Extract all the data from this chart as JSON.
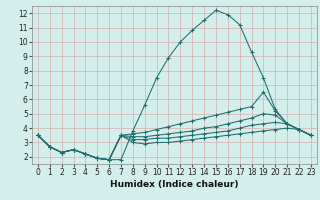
{
  "xlabel": "Humidex (Indice chaleur)",
  "bg_color": "#d4eeeb",
  "grid_color": "#aacfcc",
  "line_color": "#1e6e6e",
  "xlim": [
    -0.5,
    23.5
  ],
  "ylim": [
    1.5,
    12.5
  ],
  "xticks": [
    0,
    1,
    2,
    3,
    4,
    5,
    6,
    7,
    8,
    9,
    10,
    11,
    12,
    13,
    14,
    15,
    16,
    17,
    18,
    19,
    20,
    21,
    22,
    23
  ],
  "yticks": [
    2,
    3,
    4,
    5,
    6,
    7,
    8,
    9,
    10,
    11,
    12
  ],
  "lines": [
    {
      "x": [
        0,
        1,
        2,
        3,
        4,
        5,
        6,
        7,
        8,
        9,
        10,
        11,
        12,
        13,
        14,
        15,
        16,
        17,
        18,
        19,
        20,
        21,
        22,
        23
      ],
      "y": [
        3.5,
        2.7,
        2.3,
        2.5,
        2.2,
        1.9,
        1.8,
        1.8,
        3.8,
        5.6,
        7.5,
        8.9,
        10.0,
        10.8,
        11.5,
        12.2,
        11.9,
        11.2,
        9.3,
        7.5,
        5.3,
        4.3,
        3.9,
        3.5
      ]
    },
    {
      "x": [
        0,
        1,
        2,
        3,
        4,
        5,
        6,
        7,
        8,
        9,
        10,
        11,
        12,
        13,
        14,
        15,
        16,
        17,
        18,
        19,
        20,
        21,
        22,
        23
      ],
      "y": [
        3.5,
        2.7,
        2.3,
        2.5,
        2.2,
        1.9,
        1.8,
        3.5,
        3.6,
        3.7,
        3.9,
        4.1,
        4.3,
        4.5,
        4.7,
        4.9,
        5.1,
        5.3,
        5.5,
        6.5,
        5.2,
        4.3,
        3.9,
        3.5
      ]
    },
    {
      "x": [
        0,
        1,
        2,
        3,
        4,
        5,
        6,
        7,
        8,
        9,
        10,
        11,
        12,
        13,
        14,
        15,
        16,
        17,
        18,
        19,
        20,
        21,
        22,
        23
      ],
      "y": [
        3.5,
        2.7,
        2.3,
        2.5,
        2.2,
        1.9,
        1.8,
        3.5,
        3.4,
        3.4,
        3.5,
        3.6,
        3.7,
        3.8,
        4.0,
        4.1,
        4.3,
        4.5,
        4.7,
        5.0,
        4.9,
        4.3,
        3.9,
        3.5
      ]
    },
    {
      "x": [
        0,
        1,
        2,
        3,
        4,
        5,
        6,
        7,
        8,
        9,
        10,
        11,
        12,
        13,
        14,
        15,
        16,
        17,
        18,
        19,
        20,
        21,
        22,
        23
      ],
      "y": [
        3.5,
        2.7,
        2.3,
        2.5,
        2.2,
        1.9,
        1.8,
        3.5,
        3.2,
        3.2,
        3.3,
        3.3,
        3.4,
        3.5,
        3.6,
        3.7,
        3.8,
        4.0,
        4.2,
        4.3,
        4.4,
        4.3,
        3.9,
        3.5
      ]
    },
    {
      "x": [
        0,
        1,
        2,
        3,
        4,
        5,
        6,
        7,
        8,
        9,
        10,
        11,
        12,
        13,
        14,
        15,
        16,
        17,
        18,
        19,
        20,
        21,
        22,
        23
      ],
      "y": [
        3.5,
        2.7,
        2.3,
        2.5,
        2.2,
        1.9,
        1.8,
        3.5,
        3.0,
        2.9,
        3.0,
        3.0,
        3.1,
        3.2,
        3.3,
        3.4,
        3.5,
        3.6,
        3.7,
        3.8,
        3.9,
        4.0,
        3.9,
        3.5
      ]
    }
  ]
}
